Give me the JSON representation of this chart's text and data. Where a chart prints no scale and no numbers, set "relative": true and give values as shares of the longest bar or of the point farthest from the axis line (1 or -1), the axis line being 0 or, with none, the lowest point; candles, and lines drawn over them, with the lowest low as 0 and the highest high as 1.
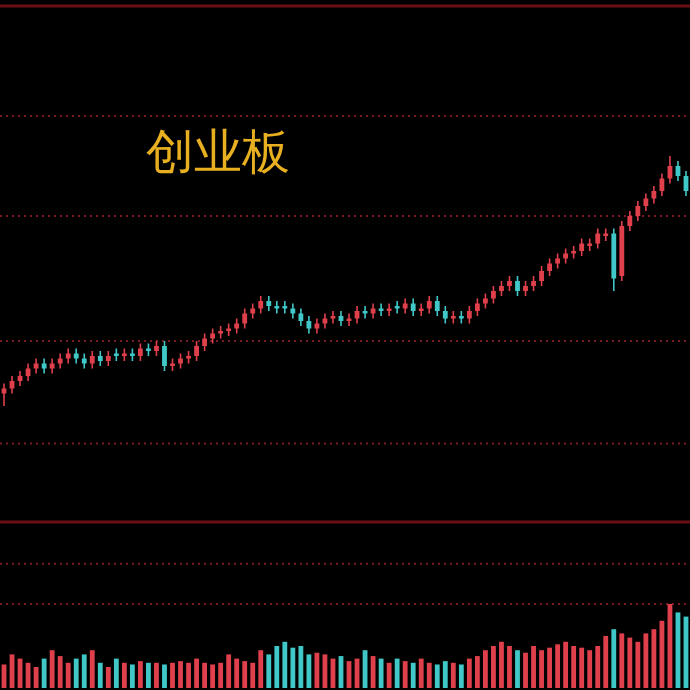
{
  "chart_data": [
    {
      "type": "candlestick",
      "title": "创业板",
      "relative": true,
      "ref_lines": [
        {
          "axis": "y",
          "value": 1.16,
          "color": "#7a1a22",
          "line_style": "dotted"
        },
        {
          "axis": "y",
          "value": 0.76,
          "color": "#7a1a22",
          "line_style": "dotted"
        },
        {
          "axis": "y",
          "value": 0.26,
          "color": "#7a1a22",
          "line_style": "dotted"
        },
        {
          "axis": "y",
          "value": -0.15,
          "color": "#7a1a22",
          "line_style": "dotted"
        }
      ],
      "categories": [
        null,
        null,
        null,
        null,
        null,
        null,
        null,
        null,
        null,
        null,
        null,
        null,
        null,
        null,
        null,
        null,
        null,
        null,
        null,
        null,
        null,
        null,
        null,
        null,
        null,
        null,
        null,
        null,
        null,
        null,
        null,
        null,
        null,
        null,
        null,
        null,
        null,
        null,
        null,
        null,
        null,
        null,
        null,
        null,
        null,
        null,
        null,
        null,
        null,
        null,
        null,
        null,
        null,
        null,
        null,
        null,
        null,
        null,
        null,
        null,
        null,
        null,
        null,
        null,
        null,
        null,
        null,
        null,
        null,
        null,
        null,
        null,
        null,
        null,
        null,
        null,
        null,
        null,
        null,
        null,
        null,
        null,
        null,
        null,
        null,
        null
      ],
      "ohlc": [
        [
          0.05,
          0.09,
          0,
          0.07
        ],
        [
          0.07,
          0.12,
          0.05,
          0.1
        ],
        [
          0.1,
          0.14,
          0.08,
          0.12
        ],
        [
          0.12,
          0.17,
          0.1,
          0.15
        ],
        [
          0.15,
          0.19,
          0.13,
          0.17
        ],
        [
          0.17,
          0.19,
          0.13,
          0.15
        ],
        [
          0.15,
          0.19,
          0.13,
          0.17
        ],
        [
          0.17,
          0.21,
          0.15,
          0.19
        ],
        [
          0.19,
          0.23,
          0.17,
          0.21
        ],
        [
          0.21,
          0.23,
          0.17,
          0.19
        ],
        [
          0.19,
          0.21,
          0.15,
          0.17
        ],
        [
          0.17,
          0.22,
          0.15,
          0.2
        ],
        [
          0.2,
          0.22,
          0.16,
          0.18
        ],
        [
          0.18,
          0.22,
          0.16,
          0.2
        ],
        [
          0.21,
          0.23,
          0.18,
          0.2
        ],
        [
          0.2,
          0.23,
          0.18,
          0.21
        ],
        [
          0.21,
          0.23,
          0.18,
          0.2
        ],
        [
          0.2,
          0.25,
          0.18,
          0.23
        ],
        [
          0.23,
          0.25,
          0.2,
          0.22
        ],
        [
          0.22,
          0.26,
          0.2,
          0.24
        ],
        [
          0.24,
          0.26,
          0.14,
          0.16
        ],
        [
          0.16,
          0.19,
          0.14,
          0.17
        ],
        [
          0.17,
          0.21,
          0.15,
          0.19
        ],
        [
          0.19,
          0.22,
          0.17,
          0.2
        ],
        [
          0.2,
          0.26,
          0.18,
          0.24
        ],
        [
          0.24,
          0.29,
          0.22,
          0.27
        ],
        [
          0.27,
          0.31,
          0.25,
          0.29
        ],
        [
          0.29,
          0.32,
          0.27,
          0.3
        ],
        [
          0.3,
          0.33,
          0.28,
          0.31
        ],
        [
          0.31,
          0.35,
          0.29,
          0.33
        ],
        [
          0.33,
          0.39,
          0.31,
          0.37
        ],
        [
          0.37,
          0.41,
          0.35,
          0.39
        ],
        [
          0.39,
          0.44,
          0.37,
          0.42
        ],
        [
          0.42,
          0.44,
          0.38,
          0.4
        ],
        [
          0.4,
          0.42,
          0.37,
          0.39
        ],
        [
          0.4,
          0.42,
          0.37,
          0.39
        ],
        [
          0.39,
          0.41,
          0.35,
          0.37
        ],
        [
          0.37,
          0.39,
          0.32,
          0.34
        ],
        [
          0.34,
          0.36,
          0.29,
          0.31
        ],
        [
          0.31,
          0.35,
          0.29,
          0.33
        ],
        [
          0.33,
          0.37,
          0.31,
          0.35
        ],
        [
          0.35,
          0.38,
          0.33,
          0.36
        ],
        [
          0.36,
          0.38,
          0.32,
          0.34
        ],
        [
          0.34,
          0.37,
          0.32,
          0.35
        ],
        [
          0.35,
          0.4,
          0.33,
          0.38
        ],
        [
          0.38,
          0.4,
          0.35,
          0.37
        ],
        [
          0.37,
          0.41,
          0.35,
          0.39
        ],
        [
          0.39,
          0.41,
          0.36,
          0.38
        ],
        [
          0.38,
          0.41,
          0.36,
          0.39
        ],
        [
          0.4,
          0.42,
          0.37,
          0.39
        ],
        [
          0.39,
          0.43,
          0.37,
          0.41
        ],
        [
          0.41,
          0.43,
          0.36,
          0.38
        ],
        [
          0.38,
          0.41,
          0.36,
          0.39
        ],
        [
          0.39,
          0.44,
          0.37,
          0.42
        ],
        [
          0.42,
          0.44,
          0.36,
          0.38
        ],
        [
          0.38,
          0.4,
          0.33,
          0.35
        ],
        [
          0.35,
          0.38,
          0.33,
          0.36
        ],
        [
          0.36,
          0.38,
          0.33,
          0.35
        ],
        [
          0.35,
          0.4,
          0.33,
          0.38
        ],
        [
          0.38,
          0.43,
          0.36,
          0.41
        ],
        [
          0.41,
          0.45,
          0.39,
          0.43
        ],
        [
          0.43,
          0.48,
          0.41,
          0.46
        ],
        [
          0.46,
          0.5,
          0.44,
          0.48
        ],
        [
          0.48,
          0.52,
          0.46,
          0.5
        ],
        [
          0.5,
          0.52,
          0.44,
          0.46
        ],
        [
          0.46,
          0.5,
          0.44,
          0.48
        ],
        [
          0.48,
          0.52,
          0.46,
          0.5
        ],
        [
          0.5,
          0.56,
          0.48,
          0.54
        ],
        [
          0.54,
          0.59,
          0.52,
          0.57
        ],
        [
          0.57,
          0.61,
          0.55,
          0.59
        ],
        [
          0.59,
          0.63,
          0.57,
          0.61
        ],
        [
          0.61,
          0.64,
          0.59,
          0.62
        ],
        [
          0.62,
          0.67,
          0.6,
          0.65
        ],
        [
          0.64,
          0.67,
          0.62,
          0.65
        ],
        [
          0.65,
          0.71,
          0.63,
          0.69
        ],
        [
          0.68,
          0.71,
          0.66,
          0.69
        ],
        [
          0.69,
          0.71,
          0.46,
          0.51
        ],
        [
          0.52,
          0.74,
          0.5,
          0.72
        ],
        [
          0.72,
          0.78,
          0.7,
          0.76
        ],
        [
          0.76,
          0.82,
          0.74,
          0.8
        ],
        [
          0.8,
          0.85,
          0.78,
          0.83
        ],
        [
          0.83,
          0.88,
          0.81,
          0.86
        ],
        [
          0.86,
          0.93,
          0.84,
          0.91
        ],
        [
          0.91,
          1.0,
          0.89,
          0.96
        ],
        [
          0.96,
          0.98,
          0.9,
          0.92
        ],
        [
          0.92,
          0.94,
          0.84,
          0.86
        ]
      ],
      "colors": [
        "#e0404c",
        "#e0404c",
        "#e0404c",
        "#e0404c",
        "#e0404c",
        "#40c8c8",
        "#e0404c",
        "#e0404c",
        "#e0404c",
        "#40c8c8",
        "#40c8c8",
        "#e0404c",
        "#40c8c8",
        "#e0404c",
        "#40c8c8",
        "#e0404c",
        "#40c8c8",
        "#e0404c",
        "#40c8c8",
        "#e0404c",
        "#40c8c8",
        "#e0404c",
        "#e0404c",
        "#e0404c",
        "#e0404c",
        "#e0404c",
        "#e0404c",
        "#e0404c",
        "#e0404c",
        "#e0404c",
        "#e0404c",
        "#e0404c",
        "#e0404c",
        "#40c8c8",
        "#40c8c8",
        "#40c8c8",
        "#40c8c8",
        "#40c8c8",
        "#40c8c8",
        "#e0404c",
        "#e0404c",
        "#e0404c",
        "#40c8c8",
        "#e0404c",
        "#e0404c",
        "#40c8c8",
        "#e0404c",
        "#40c8c8",
        "#e0404c",
        "#40c8c8",
        "#e0404c",
        "#40c8c8",
        "#e0404c",
        "#e0404c",
        "#40c8c8",
        "#40c8c8",
        "#e0404c",
        "#40c8c8",
        "#e0404c",
        "#e0404c",
        "#e0404c",
        "#e0404c",
        "#e0404c",
        "#e0404c",
        "#40c8c8",
        "#e0404c",
        "#e0404c",
        "#e0404c",
        "#e0404c",
        "#e0404c",
        "#e0404c",
        "#e0404c",
        "#e0404c",
        "#e0404c",
        "#e0404c",
        "#e0404c",
        "#40c8c8",
        "#e0404c",
        "#e0404c",
        "#e0404c",
        "#e0404c",
        "#e0404c",
        "#e0404c",
        "#e0404c",
        "#40c8c8",
        "#40c8c8"
      ]
    },
    {
      "type": "bar",
      "relative": true,
      "ref_lines": [
        {
          "axis": "y",
          "value": 1.48,
          "color": "#7a1a22",
          "line_style": "dotted"
        },
        {
          "axis": "y",
          "value": 1.0,
          "color": "#7a1a22",
          "line_style": "dotted"
        }
      ],
      "categories": [
        null,
        null,
        null,
        null,
        null,
        null,
        null,
        null,
        null,
        null,
        null,
        null,
        null,
        null,
        null,
        null,
        null,
        null,
        null,
        null,
        null,
        null,
        null,
        null,
        null,
        null,
        null,
        null,
        null,
        null,
        null,
        null,
        null,
        null,
        null,
        null,
        null,
        null,
        null,
        null,
        null,
        null,
        null,
        null,
        null,
        null,
        null,
        null,
        null,
        null,
        null,
        null,
        null,
        null,
        null,
        null,
        null,
        null,
        null,
        null,
        null,
        null,
        null,
        null,
        null,
        null,
        null,
        null,
        null,
        null,
        null,
        null,
        null,
        null,
        null,
        null,
        null,
        null,
        null,
        null,
        null,
        null,
        null,
        null,
        null,
        null
      ],
      "values": [
        0.28,
        0.4,
        0.35,
        0.3,
        0.25,
        0.35,
        0.45,
        0.38,
        0.3,
        0.35,
        0.4,
        0.45,
        0.3,
        0.25,
        0.35,
        0.3,
        0.28,
        0.32,
        0.3,
        0.3,
        0.28,
        0.3,
        0.32,
        0.3,
        0.35,
        0.3,
        0.28,
        0.3,
        0.4,
        0.35,
        0.32,
        0.3,
        0.45,
        0.4,
        0.5,
        0.55,
        0.48,
        0.5,
        0.4,
        0.42,
        0.4,
        0.35,
        0.38,
        0.32,
        0.35,
        0.45,
        0.38,
        0.35,
        0.3,
        0.35,
        0.32,
        0.3,
        0.35,
        0.3,
        0.28,
        0.32,
        0.3,
        0.28,
        0.35,
        0.38,
        0.45,
        0.5,
        0.55,
        0.5,
        0.45,
        0.42,
        0.5,
        0.45,
        0.48,
        0.52,
        0.55,
        0.5,
        0.48,
        0.45,
        0.5,
        0.62,
        0.7,
        0.65,
        0.6,
        0.55,
        0.65,
        0.7,
        0.8,
        1.0,
        0.9,
        0.85
      ],
      "colors": [
        "#e0404c",
        "#e0404c",
        "#e0404c",
        "#e0404c",
        "#e0404c",
        "#40c8c8",
        "#e0404c",
        "#e0404c",
        "#e0404c",
        "#40c8c8",
        "#40c8c8",
        "#e0404c",
        "#40c8c8",
        "#e0404c",
        "#40c8c8",
        "#e0404c",
        "#40c8c8",
        "#e0404c",
        "#40c8c8",
        "#e0404c",
        "#40c8c8",
        "#e0404c",
        "#e0404c",
        "#e0404c",
        "#e0404c",
        "#e0404c",
        "#e0404c",
        "#e0404c",
        "#e0404c",
        "#e0404c",
        "#e0404c",
        "#e0404c",
        "#e0404c",
        "#40c8c8",
        "#40c8c8",
        "#40c8c8",
        "#40c8c8",
        "#40c8c8",
        "#40c8c8",
        "#e0404c",
        "#e0404c",
        "#e0404c",
        "#40c8c8",
        "#e0404c",
        "#e0404c",
        "#40c8c8",
        "#e0404c",
        "#40c8c8",
        "#e0404c",
        "#40c8c8",
        "#e0404c",
        "#40c8c8",
        "#e0404c",
        "#e0404c",
        "#40c8c8",
        "#40c8c8",
        "#e0404c",
        "#40c8c8",
        "#e0404c",
        "#e0404c",
        "#e0404c",
        "#e0404c",
        "#e0404c",
        "#e0404c",
        "#40c8c8",
        "#e0404c",
        "#e0404c",
        "#e0404c",
        "#e0404c",
        "#e0404c",
        "#e0404c",
        "#e0404c",
        "#e0404c",
        "#e0404c",
        "#e0404c",
        "#e0404c",
        "#40c8c8",
        "#e0404c",
        "#e0404c",
        "#e0404c",
        "#e0404c",
        "#e0404c",
        "#e0404c",
        "#e0404c",
        "#40c8c8",
        "#40c8c8"
      ]
    }
  ]
}
